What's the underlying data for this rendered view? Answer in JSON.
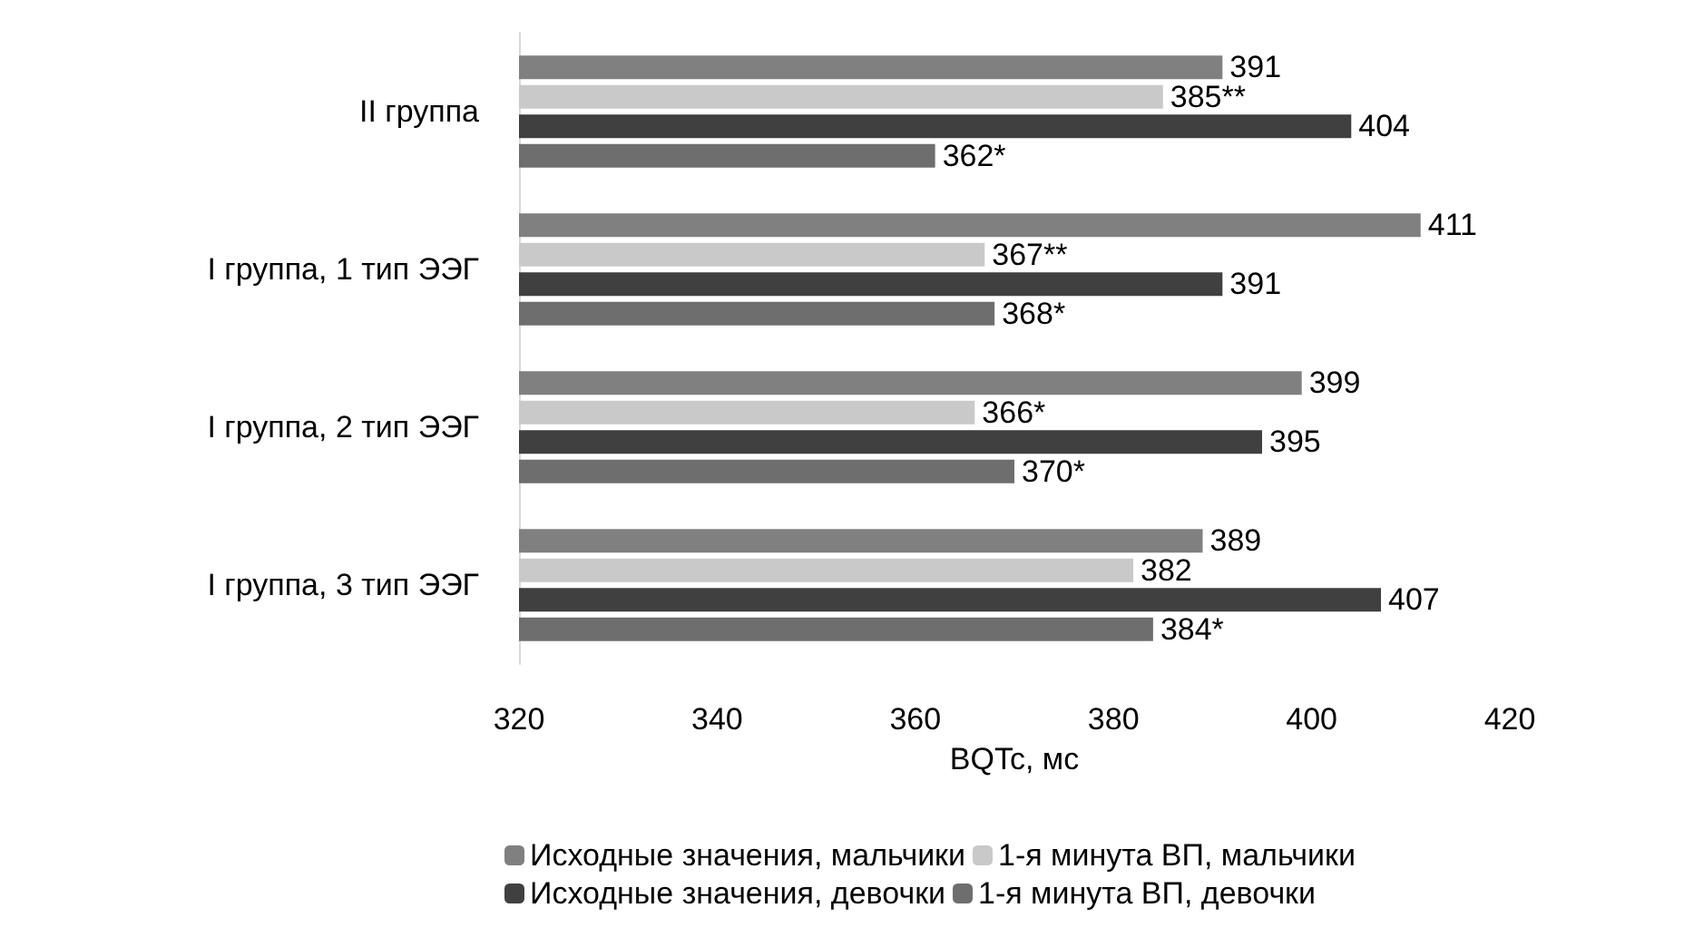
{
  "chart_data": {
    "type": "bar",
    "orientation": "horizontal",
    "xlabel": "BQTc, мс",
    "categories": [
      "II группа",
      "I группа, 1 тип ЭЭГ",
      "I группа, 2 тип ЭЭГ",
      "I группа, 3 тип ЭЭГ"
    ],
    "series": [
      {
        "name": "Исходные значения, мальчики",
        "color": "#808080",
        "values": [
          391,
          411,
          399,
          389
        ],
        "value_labels": [
          "391",
          "411",
          "399",
          "389"
        ]
      },
      {
        "name": "1-я минута ВП, мальчики",
        "color": "#c9c9c9",
        "values": [
          385,
          367,
          366,
          382
        ],
        "value_labels": [
          "385**",
          "367**",
          "366*",
          "382"
        ]
      },
      {
        "name": "Исходные значения, девочки",
        "color": "#404040",
        "values": [
          404,
          391,
          395,
          407
        ],
        "value_labels": [
          "404",
          "391",
          "395",
          "407"
        ]
      },
      {
        "name": "1-я минута ВП, девочки",
        "color": "#6e6e6e",
        "values": [
          362,
          368,
          370,
          384
        ],
        "value_labels": [
          "362*",
          "368*",
          "370*",
          "384*"
        ]
      }
    ],
    "xlim": [
      320,
      420
    ],
    "xticks": [
      320,
      340,
      360,
      380,
      400,
      420
    ],
    "grid": false,
    "legend": "bottom"
  }
}
